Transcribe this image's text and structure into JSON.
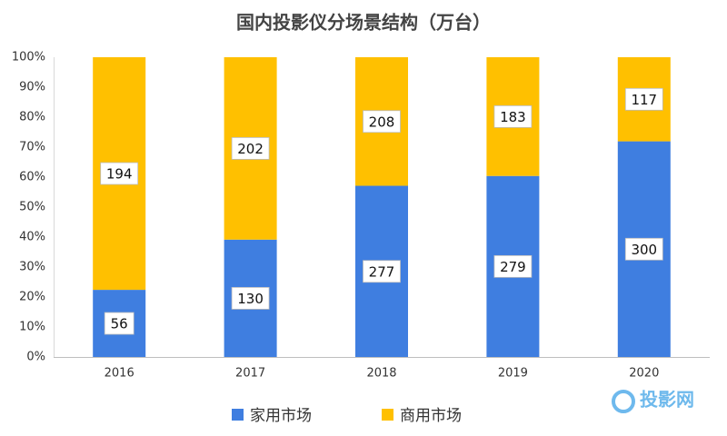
{
  "chart_data": {
    "type": "stacked_bar_percent",
    "title": "国内投影仪分场景结构（万台）",
    "categories": [
      "2016",
      "2017",
      "2018",
      "2019",
      "2020"
    ],
    "series": [
      {
        "name": "家用市场",
        "color": "#3f7ee0",
        "values": [
          56,
          130,
          277,
          279,
          300
        ]
      },
      {
        "name": "商用市场",
        "color": "#ffc000",
        "values": [
          194,
          202,
          208,
          183,
          117
        ]
      }
    ],
    "ylim": [
      0,
      100
    ],
    "yticks": [
      {
        "value": 0,
        "label": "0%"
      },
      {
        "value": 10,
        "label": "10%"
      },
      {
        "value": 20,
        "label": "20%"
      },
      {
        "value": 30,
        "label": "30%"
      },
      {
        "value": 40,
        "label": "40%"
      },
      {
        "value": 50,
        "label": "50%"
      },
      {
        "value": 60,
        "label": "60%"
      },
      {
        "value": 70,
        "label": "70%"
      },
      {
        "value": 80,
        "label": "80%"
      },
      {
        "value": 90,
        "label": "90%"
      },
      {
        "value": 100,
        "label": "100%"
      }
    ],
    "grid": false,
    "legend": "bottom",
    "watermark": "投影网"
  }
}
